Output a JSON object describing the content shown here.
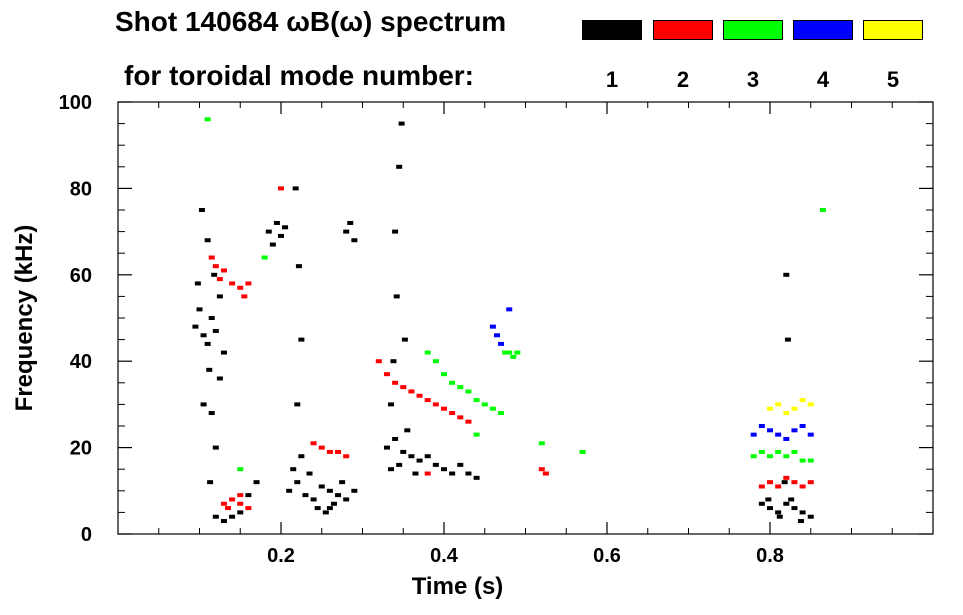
{
  "chart_data": {
    "type": "scatter",
    "title": "Shot 140684 ωB(ω) spectrum",
    "legend_title": "for toroidal mode number:",
    "xlabel": "Time (s)",
    "ylabel": "Frequency (kHz)",
    "xlim": [
      0.0,
      1.0
    ],
    "ylim": [
      0,
      100
    ],
    "x_ticks": [
      0.2,
      0.4,
      0.6,
      0.8
    ],
    "x_tick_labels": [
      "0.2",
      "0.4",
      "0.6",
      "0.8"
    ],
    "y_ticks": [
      0,
      20,
      40,
      60,
      80,
      100
    ],
    "y_tick_labels": [
      "0",
      "20",
      "40",
      "60",
      "80",
      "100"
    ],
    "grid": false,
    "legend_position": "top-right",
    "series": [
      {
        "name": "1",
        "color": "#000000",
        "points": [
          [
            0.095,
            48
          ],
          [
            0.1,
            52
          ],
          [
            0.105,
            46
          ],
          [
            0.11,
            44
          ],
          [
            0.115,
            50
          ],
          [
            0.12,
            47
          ],
          [
            0.125,
            55
          ],
          [
            0.13,
            42
          ],
          [
            0.098,
            58
          ],
          [
            0.112,
            38
          ],
          [
            0.118,
            60
          ],
          [
            0.125,
            36
          ],
          [
            0.105,
            30
          ],
          [
            0.115,
            28
          ],
          [
            0.12,
            20
          ],
          [
            0.11,
            68
          ],
          [
            0.103,
            75
          ],
          [
            0.113,
            12
          ],
          [
            0.12,
            4
          ],
          [
            0.13,
            3
          ],
          [
            0.14,
            4
          ],
          [
            0.15,
            5
          ],
          [
            0.16,
            9
          ],
          [
            0.17,
            12
          ],
          [
            0.185,
            70
          ],
          [
            0.19,
            67
          ],
          [
            0.195,
            72
          ],
          [
            0.2,
            69
          ],
          [
            0.205,
            71
          ],
          [
            0.21,
            10
          ],
          [
            0.22,
            12
          ],
          [
            0.23,
            9
          ],
          [
            0.24,
            8
          ],
          [
            0.25,
            11
          ],
          [
            0.26,
            10
          ],
          [
            0.27,
            9
          ],
          [
            0.28,
            8
          ],
          [
            0.29,
            10
          ],
          [
            0.215,
            15
          ],
          [
            0.225,
            18
          ],
          [
            0.235,
            14
          ],
          [
            0.245,
            6
          ],
          [
            0.255,
            5
          ],
          [
            0.22,
            30
          ],
          [
            0.225,
            45
          ],
          [
            0.222,
            62
          ],
          [
            0.218,
            80
          ],
          [
            0.26,
            6
          ],
          [
            0.265,
            7
          ],
          [
            0.275,
            12
          ],
          [
            0.28,
            70
          ],
          [
            0.285,
            72
          ],
          [
            0.29,
            68
          ],
          [
            0.33,
            20
          ],
          [
            0.34,
            22
          ],
          [
            0.35,
            19
          ],
          [
            0.36,
            18
          ],
          [
            0.37,
            17
          ],
          [
            0.38,
            18
          ],
          [
            0.39,
            16
          ],
          [
            0.4,
            15
          ],
          [
            0.41,
            14
          ],
          [
            0.42,
            16
          ],
          [
            0.43,
            14
          ],
          [
            0.44,
            13
          ],
          [
            0.335,
            15
          ],
          [
            0.345,
            16
          ],
          [
            0.355,
            24
          ],
          [
            0.365,
            14
          ],
          [
            0.338,
            40
          ],
          [
            0.342,
            55
          ],
          [
            0.34,
            70
          ],
          [
            0.345,
            85
          ],
          [
            0.348,
            95
          ],
          [
            0.335,
            30
          ],
          [
            0.352,
            45
          ],
          [
            0.79,
            7
          ],
          [
            0.8,
            6
          ],
          [
            0.81,
            5
          ],
          [
            0.82,
            7
          ],
          [
            0.83,
            6
          ],
          [
            0.84,
            5
          ],
          [
            0.85,
            4
          ],
          [
            0.798,
            8
          ],
          [
            0.812,
            4
          ],
          [
            0.826,
            8
          ],
          [
            0.838,
            3
          ],
          [
            0.818,
            12
          ],
          [
            0.822,
            45
          ],
          [
            0.82,
            60
          ]
        ]
      },
      {
        "name": "2",
        "color": "#ff0000",
        "points": [
          [
            0.115,
            64
          ],
          [
            0.12,
            62
          ],
          [
            0.125,
            59
          ],
          [
            0.13,
            61
          ],
          [
            0.14,
            58
          ],
          [
            0.15,
            57
          ],
          [
            0.16,
            58
          ],
          [
            0.155,
            55
          ],
          [
            0.13,
            7
          ],
          [
            0.14,
            8
          ],
          [
            0.15,
            7
          ],
          [
            0.16,
            6
          ],
          [
            0.135,
            6
          ],
          [
            0.15,
            9
          ],
          [
            0.24,
            21
          ],
          [
            0.25,
            20
          ],
          [
            0.26,
            19
          ],
          [
            0.27,
            19
          ],
          [
            0.28,
            18
          ],
          [
            0.32,
            40
          ],
          [
            0.33,
            37
          ],
          [
            0.34,
            35
          ],
          [
            0.35,
            34
          ],
          [
            0.36,
            33
          ],
          [
            0.37,
            32
          ],
          [
            0.38,
            31
          ],
          [
            0.39,
            30
          ],
          [
            0.4,
            29
          ],
          [
            0.41,
            28
          ],
          [
            0.42,
            27
          ],
          [
            0.43,
            26
          ],
          [
            0.79,
            11
          ],
          [
            0.8,
            12
          ],
          [
            0.81,
            11
          ],
          [
            0.82,
            13
          ],
          [
            0.83,
            12
          ],
          [
            0.84,
            11
          ],
          [
            0.85,
            12
          ],
          [
            0.2,
            80
          ],
          [
            0.38,
            14
          ],
          [
            0.52,
            15
          ],
          [
            0.525,
            14
          ]
        ]
      },
      {
        "name": "3",
        "color": "#00ff00",
        "points": [
          [
            0.11,
            96
          ],
          [
            0.18,
            64
          ],
          [
            0.15,
            15
          ],
          [
            0.38,
            42
          ],
          [
            0.39,
            40
          ],
          [
            0.4,
            37
          ],
          [
            0.41,
            35
          ],
          [
            0.42,
            34
          ],
          [
            0.43,
            33
          ],
          [
            0.44,
            31
          ],
          [
            0.45,
            30
          ],
          [
            0.46,
            29
          ],
          [
            0.47,
            28
          ],
          [
            0.475,
            42
          ],
          [
            0.48,
            42
          ],
          [
            0.485,
            41
          ],
          [
            0.49,
            42
          ],
          [
            0.44,
            23
          ],
          [
            0.52,
            21
          ],
          [
            0.78,
            18
          ],
          [
            0.79,
            19
          ],
          [
            0.8,
            18
          ],
          [
            0.81,
            19
          ],
          [
            0.82,
            18
          ],
          [
            0.83,
            19
          ],
          [
            0.84,
            17
          ],
          [
            0.85,
            17
          ],
          [
            0.865,
            75
          ],
          [
            0.57,
            19
          ]
        ]
      },
      {
        "name": "4",
        "color": "#0000ff",
        "points": [
          [
            0.46,
            48
          ],
          [
            0.465,
            46
          ],
          [
            0.47,
            44
          ],
          [
            0.48,
            52
          ],
          [
            0.78,
            23
          ],
          [
            0.79,
            25
          ],
          [
            0.8,
            24
          ],
          [
            0.81,
            23
          ],
          [
            0.82,
            22
          ],
          [
            0.83,
            24
          ],
          [
            0.84,
            25
          ],
          [
            0.85,
            23
          ]
        ]
      },
      {
        "name": "5",
        "color": "#ffff00",
        "points": [
          [
            0.8,
            29
          ],
          [
            0.81,
            30
          ],
          [
            0.82,
            28
          ],
          [
            0.83,
            29
          ],
          [
            0.84,
            31
          ],
          [
            0.85,
            30
          ]
        ]
      }
    ]
  }
}
